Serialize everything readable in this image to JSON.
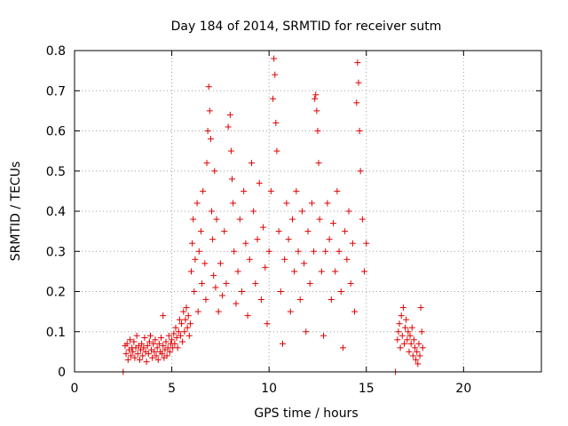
{
  "chart_data": {
    "type": "scatter",
    "title": "Day 184 of 2014, SRMTID for receiver sutm",
    "xlabel": "GPS time / hours",
    "ylabel": "SRMTID / TECUs",
    "xlim": [
      0,
      24
    ],
    "ylim": [
      0,
      0.8
    ],
    "xticks": [
      0,
      5,
      10,
      15,
      20
    ],
    "yticks": [
      0,
      0.1,
      0.2,
      0.3,
      0.4,
      0.5,
      0.6,
      0.7,
      0.8
    ],
    "xtick_labels": [
      "0",
      "5",
      "10",
      "15",
      "20"
    ],
    "ytick_labels": [
      "0",
      "0.1",
      "0.2",
      "0.3",
      "0.4",
      "0.5",
      "0.6",
      "0.7",
      "0.8"
    ],
    "grid": true,
    "marker": "+",
    "series": [
      {
        "name": "SRMTID",
        "color": "#e00000",
        "points": [
          [
            2.5,
            0.0
          ],
          [
            16.5,
            0.0
          ],
          [
            2.6,
            0.065
          ],
          [
            2.65,
            0.045
          ],
          [
            2.7,
            0.07
          ],
          [
            2.75,
            0.03
          ],
          [
            2.8,
            0.055
          ],
          [
            2.85,
            0.08
          ],
          [
            2.9,
            0.04
          ],
          [
            2.95,
            0.06
          ],
          [
            3.0,
            0.05
          ],
          [
            3.05,
            0.075
          ],
          [
            3.1,
            0.035
          ],
          [
            3.15,
            0.06
          ],
          [
            3.2,
            0.09
          ],
          [
            3.25,
            0.045
          ],
          [
            3.3,
            0.065
          ],
          [
            3.35,
            0.03
          ],
          [
            3.4,
            0.055
          ],
          [
            3.45,
            0.07
          ],
          [
            3.5,
            0.04
          ],
          [
            3.55,
            0.06
          ],
          [
            3.6,
            0.085
          ],
          [
            3.65,
            0.05
          ],
          [
            3.7,
            0.025
          ],
          [
            3.75,
            0.065
          ],
          [
            3.8,
            0.045
          ],
          [
            3.85,
            0.075
          ],
          [
            3.9,
            0.09
          ],
          [
            3.95,
            0.055
          ],
          [
            4.0,
            0.035
          ],
          [
            4.05,
            0.07
          ],
          [
            4.1,
            0.05
          ],
          [
            4.15,
            0.08
          ],
          [
            4.2,
            0.04
          ],
          [
            4.25,
            0.06
          ],
          [
            4.3,
            0.03
          ],
          [
            4.35,
            0.07
          ],
          [
            4.4,
            0.05
          ],
          [
            4.45,
            0.085
          ],
          [
            4.5,
            0.045
          ],
          [
            4.55,
            0.065
          ],
          [
            4.6,
            0.035
          ],
          [
            4.65,
            0.055
          ],
          [
            4.7,
            0.075
          ],
          [
            4.75,
            0.04
          ],
          [
            4.8,
            0.06
          ],
          [
            4.85,
            0.09
          ],
          [
            4.9,
            0.05
          ],
          [
            4.95,
            0.07
          ],
          [
            4.55,
            0.14
          ],
          [
            5.0,
            0.08
          ],
          [
            5.05,
            0.06
          ],
          [
            5.1,
            0.095
          ],
          [
            5.15,
            0.07
          ],
          [
            5.2,
            0.11
          ],
          [
            5.25,
            0.085
          ],
          [
            5.3,
            0.06
          ],
          [
            5.35,
            0.1
          ],
          [
            5.4,
            0.13
          ],
          [
            5.45,
            0.09
          ],
          [
            5.5,
            0.12
          ],
          [
            5.55,
            0.075
          ],
          [
            5.6,
            0.15
          ],
          [
            5.65,
            0.1
          ],
          [
            5.7,
            0.13
          ],
          [
            5.75,
            0.16
          ],
          [
            5.8,
            0.11
          ],
          [
            5.85,
            0.14
          ],
          [
            5.9,
            0.09
          ],
          [
            5.95,
            0.12
          ],
          [
            6.0,
            0.25
          ],
          [
            6.05,
            0.32
          ],
          [
            6.1,
            0.38
          ],
          [
            6.15,
            0.2
          ],
          [
            6.2,
            0.28
          ],
          [
            6.3,
            0.42
          ],
          [
            6.35,
            0.15
          ],
          [
            6.4,
            0.3
          ],
          [
            6.5,
            0.35
          ],
          [
            6.55,
            0.22
          ],
          [
            6.6,
            0.45
          ],
          [
            6.7,
            0.27
          ],
          [
            6.75,
            0.18
          ],
          [
            6.8,
            0.52
          ],
          [
            6.85,
            0.6
          ],
          [
            6.9,
            0.71
          ],
          [
            6.95,
            0.65
          ],
          [
            7.0,
            0.58
          ],
          [
            7.05,
            0.4
          ],
          [
            7.1,
            0.33
          ],
          [
            7.15,
            0.24
          ],
          [
            7.2,
            0.5
          ],
          [
            7.25,
            0.21
          ],
          [
            7.3,
            0.38
          ],
          [
            7.4,
            0.15
          ],
          [
            7.5,
            0.27
          ],
          [
            7.6,
            0.19
          ],
          [
            7.7,
            0.35
          ],
          [
            7.8,
            0.22
          ],
          [
            7.9,
            0.61
          ],
          [
            8.0,
            0.64
          ],
          [
            8.05,
            0.55
          ],
          [
            8.1,
            0.48
          ],
          [
            8.15,
            0.42
          ],
          [
            8.2,
            0.3
          ],
          [
            8.3,
            0.17
          ],
          [
            8.4,
            0.25
          ],
          [
            8.5,
            0.38
          ],
          [
            8.6,
            0.2
          ],
          [
            8.7,
            0.45
          ],
          [
            8.8,
            0.32
          ],
          [
            8.9,
            0.14
          ],
          [
            9.0,
            0.28
          ],
          [
            9.1,
            0.52
          ],
          [
            9.2,
            0.4
          ],
          [
            9.3,
            0.22
          ],
          [
            9.4,
            0.33
          ],
          [
            9.5,
            0.47
          ],
          [
            9.6,
            0.18
          ],
          [
            9.7,
            0.36
          ],
          [
            9.8,
            0.26
          ],
          [
            9.9,
            0.12
          ],
          [
            10.0,
            0.3
          ],
          [
            10.1,
            0.45
          ],
          [
            10.2,
            0.68
          ],
          [
            10.25,
            0.78
          ],
          [
            10.3,
            0.74
          ],
          [
            10.35,
            0.62
          ],
          [
            10.4,
            0.55
          ],
          [
            10.5,
            0.35
          ],
          [
            10.6,
            0.2
          ],
          [
            10.7,
            0.07
          ],
          [
            10.8,
            0.28
          ],
          [
            10.9,
            0.42
          ],
          [
            11.0,
            0.33
          ],
          [
            11.1,
            0.15
          ],
          [
            11.2,
            0.38
          ],
          [
            11.3,
            0.25
          ],
          [
            11.4,
            0.45
          ],
          [
            11.5,
            0.3
          ],
          [
            11.6,
            0.18
          ],
          [
            11.7,
            0.4
          ],
          [
            11.8,
            0.27
          ],
          [
            11.9,
            0.1
          ],
          [
            12.0,
            0.35
          ],
          [
            12.1,
            0.22
          ],
          [
            12.2,
            0.42
          ],
          [
            12.3,
            0.3
          ],
          [
            12.35,
            0.68
          ],
          [
            12.4,
            0.69
          ],
          [
            12.45,
            0.65
          ],
          [
            12.5,
            0.6
          ],
          [
            12.55,
            0.52
          ],
          [
            12.6,
            0.38
          ],
          [
            12.7,
            0.25
          ],
          [
            12.8,
            0.09
          ],
          [
            12.9,
            0.3
          ],
          [
            13.0,
            0.42
          ],
          [
            13.1,
            0.33
          ],
          [
            13.2,
            0.18
          ],
          [
            13.3,
            0.37
          ],
          [
            13.4,
            0.25
          ],
          [
            13.5,
            0.45
          ],
          [
            13.6,
            0.3
          ],
          [
            13.7,
            0.2
          ],
          [
            13.8,
            0.06
          ],
          [
            13.9,
            0.35
          ],
          [
            14.0,
            0.28
          ],
          [
            14.1,
            0.4
          ],
          [
            14.2,
            0.22
          ],
          [
            14.3,
            0.32
          ],
          [
            14.4,
            0.15
          ],
          [
            14.5,
            0.67
          ],
          [
            14.55,
            0.77
          ],
          [
            14.6,
            0.72
          ],
          [
            14.65,
            0.6
          ],
          [
            14.7,
            0.5
          ],
          [
            14.8,
            0.38
          ],
          [
            14.9,
            0.25
          ],
          [
            15.0,
            0.32
          ],
          [
            16.6,
            0.08
          ],
          [
            16.65,
            0.1
          ],
          [
            16.7,
            0.12
          ],
          [
            16.75,
            0.06
          ],
          [
            16.8,
            0.14
          ],
          [
            16.85,
            0.09
          ],
          [
            16.9,
            0.16
          ],
          [
            16.95,
            0.07
          ],
          [
            17.0,
            0.11
          ],
          [
            17.05,
            0.13
          ],
          [
            17.1,
            0.08
          ],
          [
            17.15,
            0.1
          ],
          [
            17.2,
            0.05
          ],
          [
            17.25,
            0.09
          ],
          [
            17.3,
            0.07
          ],
          [
            17.35,
            0.11
          ],
          [
            17.4,
            0.04
          ],
          [
            17.45,
            0.08
          ],
          [
            17.5,
            0.06
          ],
          [
            17.55,
            0.03
          ],
          [
            17.6,
            0.05
          ],
          [
            17.65,
            0.02
          ],
          [
            17.7,
            0.07
          ],
          [
            17.75,
            0.04
          ],
          [
            17.8,
            0.16
          ],
          [
            17.85,
            0.1
          ],
          [
            17.9,
            0.06
          ]
        ]
      }
    ]
  }
}
